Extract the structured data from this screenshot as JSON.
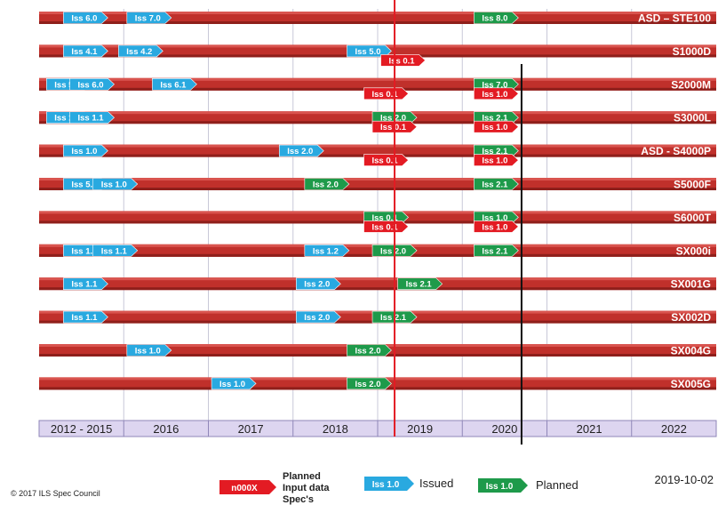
{
  "chart_data": {
    "type": "timeline",
    "years": [
      "2012 - 2015",
      "2016",
      "2017",
      "2018",
      "2019",
      "2020",
      "2021",
      "2022"
    ],
    "specs": [
      {
        "name": "ASD – STE100",
        "markers": [
          {
            "label": "Iss 6.0",
            "status": "issued",
            "pos": 2014.2
          },
          {
            "label": "Iss 7.0",
            "status": "issued",
            "pos": 2016.3
          },
          {
            "label": "Iss 8.0",
            "status": "planned",
            "pos": 2020.4
          }
        ]
      },
      {
        "name": "S1000D",
        "markers": [
          {
            "label": "Iss 4.1",
            "status": "issued",
            "pos": 2014.2
          },
          {
            "label": "Iss 4.2",
            "status": "issued",
            "pos": 2016.2
          },
          {
            "label": "Iss 5.0",
            "status": "issued",
            "pos": 2018.9
          },
          {
            "label": "Iss 0.1",
            "status": "input",
            "pos": 2019.3
          }
        ]
      },
      {
        "name": "S2000M",
        "markers": [
          {
            "label": "Iss 5.0",
            "status": "issued",
            "pos": 2013.4
          },
          {
            "label": "Iss 6.0",
            "status": "issued",
            "pos": 2014.5
          },
          {
            "label": "Iss 6.1",
            "status": "issued",
            "pos": 2016.6
          },
          {
            "label": "Iss 7.0",
            "status": "planned",
            "pos": 2020.4
          },
          {
            "label": "Iss 0.1",
            "status": "input",
            "pos": 2019.1
          },
          {
            "label": "Iss 1.0",
            "status": "input",
            "pos": 2020.4
          }
        ]
      },
      {
        "name": "S3000L",
        "markers": [
          {
            "label": "Iss 1.0",
            "status": "issued",
            "pos": 2013.4
          },
          {
            "label": "Iss 1.1",
            "status": "issued",
            "pos": 2014.5
          },
          {
            "label": "Iss 2.0",
            "status": "planned",
            "pos": 2019.2
          },
          {
            "label": "Iss 2.1",
            "status": "planned",
            "pos": 2020.4
          },
          {
            "label": "Iss 0.1",
            "status": "input",
            "pos": 2019.2
          },
          {
            "label": "Iss 1.0",
            "status": "input",
            "pos": 2020.4
          }
        ]
      },
      {
        "name": "ASD - S4000P",
        "markers": [
          {
            "label": "Iss 1.0",
            "status": "issued",
            "pos": 2014.2
          },
          {
            "label": "Iss 2.0",
            "status": "issued",
            "pos": 2018.1
          },
          {
            "label": "Iss 2.1",
            "status": "planned",
            "pos": 2020.4
          },
          {
            "label": "Iss 0.1",
            "status": "input",
            "pos": 2019.1
          },
          {
            "label": "Iss 1.0",
            "status": "input",
            "pos": 2020.4
          }
        ]
      },
      {
        "name": "S5000F",
        "markers": [
          {
            "label": "Iss 5.0",
            "status": "issued",
            "pos": 2014.2
          },
          {
            "label": "Iss 1.0",
            "status": "issued",
            "pos": 2015.6
          },
          {
            "label": "Iss 2.0",
            "status": "planned",
            "pos": 2018.4
          },
          {
            "label": "Iss 2.1",
            "status": "planned",
            "pos": 2020.4
          }
        ]
      },
      {
        "name": "S6000T",
        "markers": [
          {
            "label": "Iss 0.1",
            "status": "planned",
            "pos": 2019.1
          },
          {
            "label": "Iss 1.0",
            "status": "planned",
            "pos": 2020.4
          },
          {
            "label": "Iss 0.1",
            "status": "input",
            "pos": 2019.1
          },
          {
            "label": "Iss 1.0",
            "status": "input",
            "pos": 2020.4
          }
        ]
      },
      {
        "name": "SX000i",
        "markers": [
          {
            "label": "Iss 1.0",
            "status": "issued",
            "pos": 2014.2
          },
          {
            "label": "Iss 1.1",
            "status": "issued",
            "pos": 2015.6
          },
          {
            "label": "Iss 1.2",
            "status": "issued",
            "pos": 2018.4
          },
          {
            "label": "Iss 2.0",
            "status": "planned",
            "pos": 2019.2
          },
          {
            "label": "Iss 2.1",
            "status": "planned",
            "pos": 2020.4
          }
        ]
      },
      {
        "name": "SX001G",
        "markers": [
          {
            "label": "Iss 1.1",
            "status": "issued",
            "pos": 2014.2
          },
          {
            "label": "Iss 2.0",
            "status": "issued",
            "pos": 2018.3
          },
          {
            "label": "Iss 2.1",
            "status": "planned",
            "pos": 2019.5
          }
        ]
      },
      {
        "name": "SX002D",
        "markers": [
          {
            "label": "Iss 1.1",
            "status": "issued",
            "pos": 2014.2
          },
          {
            "label": "Iss 2.0",
            "status": "issued",
            "pos": 2018.3
          },
          {
            "label": "Iss 2.1",
            "status": "planned",
            "pos": 2019.2
          }
        ]
      },
      {
        "name": "SX004G",
        "markers": [
          {
            "label": "Iss 1.0",
            "status": "issued",
            "pos": 2016.3
          },
          {
            "label": "Iss 2.0",
            "status": "planned",
            "pos": 2018.9
          }
        ]
      },
      {
        "name": "SX005G",
        "markers": [
          {
            "label": "Iss 1.0",
            "status": "issued",
            "pos": 2017.3
          },
          {
            "label": "Iss 2.0",
            "status": "planned",
            "pos": 2018.9
          }
        ]
      }
    ],
    "today_marker": 2019.2,
    "cutoff_marker": 2020.7
  },
  "legend": {
    "input": {
      "tag": "n000X",
      "text": "Planned Input data Spec's"
    },
    "issued": {
      "tag": "Iss 1.0",
      "text": "Issued"
    },
    "planned": {
      "tag": "Iss 1.0",
      "text": "Planned"
    }
  },
  "footer": {
    "copyright": "© 2017 ILS Spec Council",
    "date": "2019-10-02"
  },
  "colors": {
    "bar": "#c0302b",
    "issued": "#29a9e0",
    "planned": "#1e9a4a",
    "input": "#e31b23",
    "year_band": "#ddd5f0",
    "today_line": "#e31b23",
    "cutoff_line": "#111111"
  }
}
